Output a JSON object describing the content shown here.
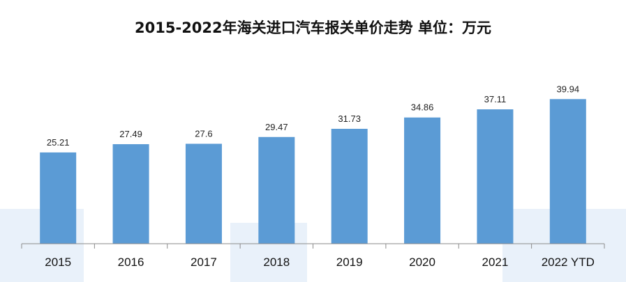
{
  "chart_data": {
    "type": "bar",
    "title": "2015-2022年海关进口汽车报关单价走势  单位：万元",
    "categories": [
      "2015",
      "2016",
      "2017",
      "2018",
      "2019",
      "2020",
      "2021",
      "2022 YTD"
    ],
    "values": [
      25.21,
      27.49,
      27.6,
      29.47,
      31.73,
      34.86,
      37.11,
      39.94
    ],
    "value_labels": [
      "25.21",
      "27.49",
      "27.6",
      "29.47",
      "31.73",
      "34.86",
      "37.11",
      "39.94"
    ],
    "ylim": [
      0,
      45
    ],
    "grid": false,
    "legend": "none",
    "bar_color": "#5b9bd5"
  }
}
